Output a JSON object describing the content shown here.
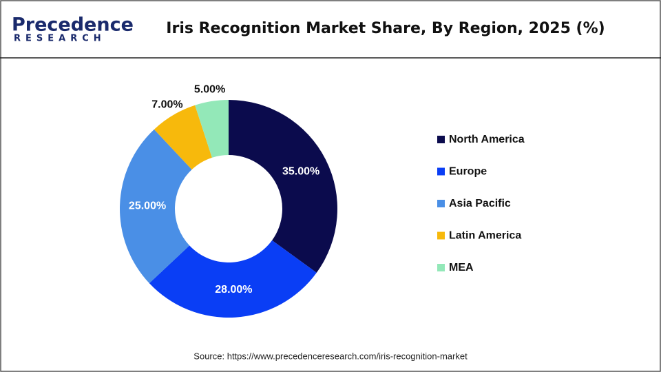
{
  "logo": {
    "name": "Precedence",
    "tagline": "RESEARCH"
  },
  "chart_data": {
    "type": "donut",
    "title": "Iris Recognition Market Share, By Region, 2025 (%)",
    "categories": [
      "North America",
      "Europe",
      "Asia Pacific",
      "Latin America",
      "MEA"
    ],
    "values": [
      35,
      28,
      25,
      7,
      5
    ],
    "value_labels": [
      "35.00%",
      "28.00%",
      "25.00%",
      "7.00%",
      "5.00%"
    ],
    "colors": [
      "#0b0b4d",
      "#0a3ef5",
      "#4a8fe6",
      "#f7b90c",
      "#93e8b8"
    ],
    "legend": "right",
    "source": "Source: https://www.precedenceresearch.com/iris-recognition-market"
  }
}
